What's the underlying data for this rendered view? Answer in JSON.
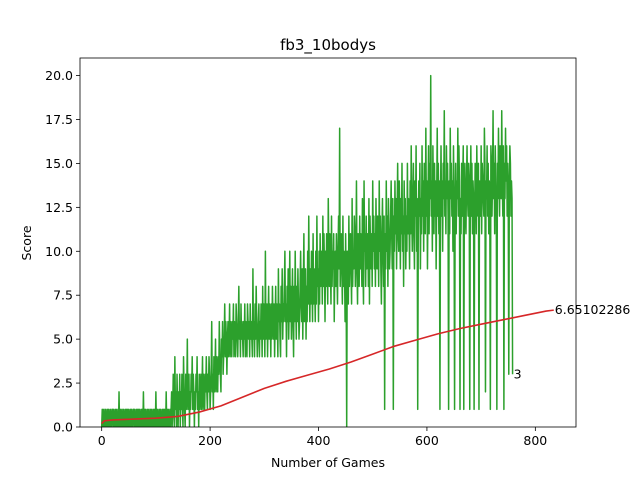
{
  "chart_data": {
    "type": "line",
    "title": "fb3_10bodys",
    "xlabel": "Number of Games",
    "ylabel": "Score",
    "xlim": [
      -40,
      875
    ],
    "ylim": [
      0,
      21
    ],
    "xticks": [
      0,
      200,
      400,
      600,
      800
    ],
    "xtick_labels": [
      "0",
      "200",
      "400",
      "600",
      "800"
    ],
    "yticks": [
      0,
      2.5,
      5,
      7.5,
      10,
      12.5,
      15,
      17.5,
      20
    ],
    "ytick_labels": [
      "0.0",
      "2.5",
      "5.0",
      "7.5",
      "10.0",
      "12.5",
      "15.0",
      "17.5",
      "20.0"
    ],
    "grid": false,
    "series": [
      {
        "color": "#2ca02c",
        "description": "per-game score",
        "x_start": 0,
        "x_step": 1,
        "values": [
          0,
          1,
          0,
          1,
          0,
          0,
          1,
          0,
          1,
          0,
          0,
          1,
          0,
          1,
          0,
          0,
          1,
          0,
          0,
          1,
          1,
          0,
          1,
          0,
          0,
          1,
          0,
          1,
          0,
          0,
          1,
          0,
          2,
          0,
          1,
          0,
          1,
          0,
          0,
          1,
          0,
          1,
          0,
          0,
          1,
          0,
          1,
          0,
          1,
          0,
          1,
          0,
          0,
          1,
          0,
          1,
          0,
          0,
          1,
          1,
          0,
          1,
          0,
          0,
          1,
          0,
          1,
          0,
          1,
          0,
          1,
          0,
          0,
          1,
          0,
          1,
          0,
          2,
          0,
          1,
          0,
          1,
          0,
          0,
          1,
          0,
          1,
          0,
          0,
          1,
          0,
          1,
          0,
          1,
          0,
          0,
          1,
          0,
          1,
          0,
          2,
          0,
          1,
          0,
          1,
          0,
          0,
          1,
          0,
          1,
          0,
          0,
          1,
          0,
          1,
          0,
          1,
          0,
          0,
          2,
          0,
          1,
          0,
          1,
          0,
          0,
          1,
          0,
          1,
          2,
          0,
          1,
          3,
          1,
          0,
          4,
          1,
          2,
          0,
          3,
          1,
          0,
          2,
          1,
          3,
          0,
          2,
          1,
          3,
          1,
          0,
          4,
          2,
          1,
          0,
          3,
          1,
          2,
          5,
          1,
          2,
          3,
          0,
          2,
          1,
          3,
          2,
          4,
          1,
          3,
          2,
          0,
          2,
          1,
          3,
          2,
          4,
          1,
          2,
          0,
          3,
          1,
          2,
          3,
          1,
          2,
          4,
          1,
          3,
          2,
          1,
          3,
          2,
          4,
          2,
          1,
          3,
          2,
          4,
          3,
          1,
          2,
          3,
          6,
          2,
          3,
          1,
          4,
          2,
          3,
          5,
          2,
          4,
          3,
          2,
          4,
          3,
          6,
          4,
          3,
          2,
          5,
          4,
          6,
          3,
          4,
          5,
          7,
          4,
          6,
          5,
          3,
          5,
          6,
          4,
          5,
          7,
          4,
          6,
          5,
          4,
          6,
          5,
          7,
          4,
          6,
          5,
          4,
          7,
          6,
          5,
          4,
          6,
          8,
          5,
          6,
          4,
          7,
          5,
          6,
          5,
          4,
          6,
          5,
          7,
          4,
          6,
          5,
          4,
          7,
          6,
          5,
          6,
          4,
          7,
          5,
          6,
          5,
          4,
          9,
          5,
          6,
          4,
          7,
          5,
          8,
          6,
          4,
          5,
          6,
          7,
          4,
          6,
          5,
          7,
          6,
          4,
          8,
          5,
          7,
          6,
          4,
          10,
          5,
          6,
          7,
          4,
          6,
          8,
          5,
          7,
          6,
          4,
          7,
          5,
          8,
          6,
          5,
          7,
          4,
          6,
          8,
          5,
          7,
          6,
          4,
          9,
          6,
          7,
          5,
          4,
          8,
          6,
          9,
          5,
          7,
          6,
          8,
          10,
          6,
          7,
          4,
          8,
          6,
          9,
          5,
          7,
          10,
          6,
          8,
          5,
          7,
          9,
          6,
          4,
          8,
          6,
          10,
          7,
          5,
          8,
          6,
          9,
          7,
          5,
          6,
          8,
          10,
          7,
          6,
          9,
          5,
          8,
          11,
          6,
          7,
          9,
          5,
          8,
          6,
          10,
          7,
          12,
          8,
          6,
          9,
          7,
          10,
          8,
          6,
          11,
          7,
          9,
          8,
          6,
          10,
          7,
          12,
          8,
          9,
          6,
          10,
          7,
          11,
          8,
          9,
          10,
          7,
          12,
          8,
          11,
          9,
          6,
          10,
          8,
          11,
          9,
          7,
          13,
          10,
          8,
          11,
          9,
          7,
          12,
          8,
          10,
          9,
          11,
          6,
          9,
          10,
          8,
          11,
          9,
          7,
          10,
          12,
          9,
          17,
          8,
          10,
          11,
          9,
          7,
          12,
          8,
          10,
          9,
          6,
          11,
          8,
          0,
          10,
          9,
          7,
          12,
          8,
          10,
          11,
          9,
          7,
          13,
          8,
          10,
          9,
          12,
          11,
          8,
          10,
          14,
          9,
          7,
          11,
          10,
          8,
          12,
          9,
          11,
          10,
          8,
          13,
          9,
          7,
          14,
          10,
          11,
          8,
          12,
          9,
          10,
          11,
          8,
          13,
          7,
          12,
          10,
          9,
          11,
          8,
          14,
          10,
          12,
          9,
          11,
          8,
          13,
          10,
          9,
          12,
          11,
          8,
          14,
          10,
          12,
          9,
          7,
          11,
          13,
          10,
          8,
          12,
          1,
          11,
          9,
          14,
          10,
          12,
          8,
          13,
          11,
          9,
          10,
          12,
          14,
          11,
          9,
          13,
          1,
          12,
          10,
          14,
          11,
          13,
          9,
          12,
          15,
          11,
          10,
          14,
          12,
          9,
          13,
          11,
          15,
          10,
          12,
          8,
          14,
          11,
          13,
          9,
          12,
          10,
          15,
          11,
          13,
          12,
          9,
          14,
          11,
          16,
          12,
          10,
          13,
          15,
          11,
          9,
          14,
          12,
          16,
          10,
          13,
          1,
          11,
          14,
          12,
          15,
          9,
          13,
          11,
          16,
          12,
          14,
          10,
          15,
          13,
          11,
          17,
          12,
          14,
          9,
          13,
          16,
          11,
          15,
          13,
          20,
          12,
          14,
          10,
          16,
          13,
          11,
          15,
          12,
          14,
          9,
          13,
          17,
          12,
          15,
          11,
          14,
          1,
          13,
          16,
          12,
          14,
          10,
          15,
          13,
          18,
          12,
          14,
          11,
          16,
          13,
          15,
          12,
          1,
          14,
          11,
          17,
          13,
          15,
          12,
          14,
          10,
          16,
          13,
          1,
          12,
          15,
          11,
          14,
          13,
          17,
          12,
          16,
          14,
          1,
          13,
          11,
          15,
          12,
          14,
          16,
          1,
          13,
          15,
          12,
          11,
          14,
          16,
          13,
          12,
          15,
          14,
          1,
          13,
          16,
          12,
          15,
          11,
          14,
          13,
          1,
          12,
          15,
          14,
          11,
          16,
          13,
          12,
          15,
          1,
          14,
          13,
          12,
          16,
          11,
          15,
          14,
          13,
          12,
          17,
          15,
          2,
          14,
          13,
          16,
          12,
          15,
          11,
          14,
          13,
          1,
          16,
          15,
          12,
          14,
          18,
          13,
          15,
          11,
          16,
          14,
          12,
          1,
          15,
          13,
          17,
          14,
          12,
          16,
          15,
          13,
          18,
          14,
          12,
          16,
          1,
          15,
          13,
          17,
          14,
          16,
          12,
          15,
          13,
          3,
          14,
          16,
          15,
          12,
          14,
          13,
          3
        ],
        "last_value_label": "3"
      },
      {
        "color": "#d62728",
        "description": "running mean score",
        "x": [
          0,
          5,
          20,
          60,
          100,
          140,
          180,
          220,
          260,
          300,
          340,
          380,
          420,
          460,
          500,
          540,
          580,
          620,
          660,
          700,
          740,
          780,
          820,
          834
        ],
        "values": [
          0.2,
          0.35,
          0.4,
          0.45,
          0.5,
          0.6,
          0.85,
          1.2,
          1.7,
          2.2,
          2.6,
          2.95,
          3.3,
          3.7,
          4.15,
          4.6,
          4.95,
          5.3,
          5.6,
          5.85,
          6.1,
          6.35,
          6.6,
          6.65102286
        ],
        "last_value_label": "6.65102286"
      }
    ]
  }
}
